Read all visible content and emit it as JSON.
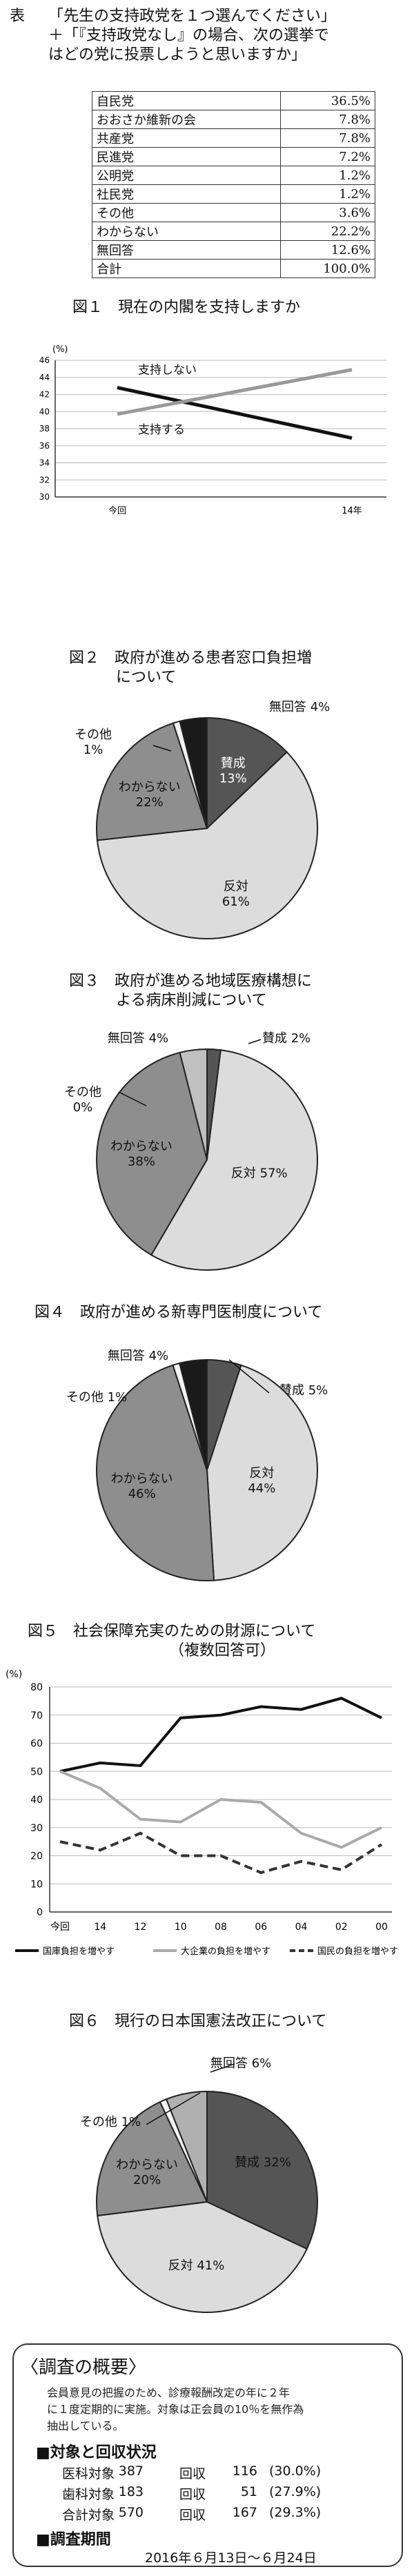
{
  "table_label": "表",
  "table_title": [
    "「先生の支持政党を１つ選んでください」",
    "＋「『支持政党なし』の場合、次の選挙で",
    "はどの党に投票しようと思いますか」"
  ],
  "chart_data": [
    {
      "type": "table",
      "rows": [
        {
          "name": "自民党",
          "value": "36.5%"
        },
        {
          "name": "おおさか維新の会",
          "value": "7.8%"
        },
        {
          "name": "共産党",
          "value": "7.8%"
        },
        {
          "name": "民進党",
          "value": "7.2%"
        },
        {
          "name": "公明党",
          "value": "1.2%"
        },
        {
          "name": "社民党",
          "value": "1.2%"
        },
        {
          "name": "その他",
          "value": "3.6%"
        },
        {
          "name": "わからない",
          "value": "22.2%"
        },
        {
          "name": "無回答",
          "value": "12.6%"
        },
        {
          "name": "合計",
          "value": "100.0%"
        }
      ]
    },
    {
      "type": "line",
      "num": "図１",
      "title": "現在の内閣を支持しますか",
      "unit": "(%)",
      "x": [
        "今回",
        "14年"
      ],
      "ylim": [
        30,
        46
      ],
      "yticks": [
        30,
        32,
        34,
        36,
        38,
        40,
        42,
        44,
        46
      ],
      "series": [
        {
          "name": "支持しない",
          "values": [
            42.8,
            36.9
          ],
          "color": "#111111"
        },
        {
          "name": "支持する",
          "values": [
            39.7,
            44.9
          ],
          "color": "#999999"
        }
      ]
    },
    {
      "type": "pie",
      "num": "図２",
      "title": [
        "政府が進める患者窓口負担増",
        "について"
      ],
      "slices": [
        {
          "label": "賛成",
          "value": 13,
          "color": "#555555"
        },
        {
          "label": "反対",
          "value": 61,
          "color": "#dcdcdc"
        },
        {
          "label": "わからない",
          "value": 22,
          "color": "#8e8e8e"
        },
        {
          "label": "その他",
          "value": 1,
          "color": "#f2f2f2"
        },
        {
          "label": "無回答",
          "value": 4,
          "color": "#1a1a1a"
        }
      ]
    },
    {
      "type": "pie",
      "num": "図３",
      "title": [
        "政府が進める地域医療構想に",
        "よる病床削減について"
      ],
      "slices": [
        {
          "label": "賛成",
          "value": 2,
          "color": "#555555"
        },
        {
          "label": "反対",
          "value": 57,
          "color": "#dcdcdc"
        },
        {
          "label": "わからない",
          "value": 38,
          "color": "#8e8e8e"
        },
        {
          "label": "その他",
          "value": 0,
          "color": "#f2f2f2"
        },
        {
          "label": "無回答",
          "value": 4,
          "color": "#c0c0c0"
        }
      ]
    },
    {
      "type": "pie",
      "num": "図４",
      "title": [
        "政府が進める新専門医制度について"
      ],
      "slices": [
        {
          "label": "賛成",
          "value": 5,
          "color": "#555555"
        },
        {
          "label": "反対",
          "value": 44,
          "color": "#dcdcdc"
        },
        {
          "label": "わからない",
          "value": 46,
          "color": "#8e8e8e"
        },
        {
          "label": "その他",
          "value": 1,
          "color": "#f2f2f2"
        },
        {
          "label": "無回答",
          "value": 4,
          "color": "#1a1a1a"
        }
      ]
    },
    {
      "type": "line",
      "num": "図５",
      "title": [
        "社会保障充実のための財源について",
        "（複数回答可）"
      ],
      "unit": "(%)",
      "x": [
        "今回",
        "14",
        "12",
        "10",
        "08",
        "06",
        "04",
        "02",
        "00"
      ],
      "ylim": [
        0,
        80
      ],
      "yticks": [
        0,
        10,
        20,
        30,
        40,
        50,
        60,
        70,
        80
      ],
      "series": [
        {
          "name": "国庫負担を増やす",
          "values": [
            50,
            53,
            52,
            69,
            70,
            73,
            72,
            76,
            69
          ],
          "style": "solid",
          "color": "#111111"
        },
        {
          "name": "大企業の負担を増やす",
          "values": [
            50,
            44,
            33,
            32,
            40,
            39,
            28,
            23,
            30
          ],
          "style": "solid",
          "color": "#aaaaaa"
        },
        {
          "name": "国民の負担を増やす",
          "values": [
            25,
            22,
            28,
            20,
            20,
            14,
            18,
            15,
            24
          ],
          "style": "dashed",
          "color": "#333333"
        }
      ]
    },
    {
      "type": "pie",
      "num": "図６",
      "title": [
        "現行の日本国憲法改正について"
      ],
      "slices": [
        {
          "label": "賛成",
          "value": 32,
          "color": "#555555"
        },
        {
          "label": "反対",
          "value": 41,
          "color": "#dcdcdc"
        },
        {
          "label": "わからない",
          "value": 20,
          "color": "#8e8e8e"
        },
        {
          "label": "その他",
          "value": 1,
          "color": "#f2f2f2"
        },
        {
          "label": "無回答",
          "value": 6,
          "color": "#b0b0b0"
        }
      ]
    }
  ],
  "summary": {
    "title": "〈調査の概要〉",
    "body": [
      "会員意見の把握のため、診療報酬改定の年に２年",
      "に１度定期的に実施。対象は正会員の10％を無作為",
      "抽出している。"
    ],
    "h_targets": "■対象と回収状況",
    "rows": [
      {
        "label": "医科対象",
        "target": "387",
        "rec_label": "回収",
        "rec": "116",
        "pct": "(30.0%)"
      },
      {
        "label": "歯科対象",
        "target": "183",
        "rec_label": "回収",
        "rec": "51",
        "pct": "(27.9%)"
      },
      {
        "label": "合計対象",
        "target": "570",
        "rec_label": "回収",
        "rec": "167",
        "pct": "(29.3%)"
      }
    ],
    "h_period": "■調査期間",
    "period": "2016年６月13日～６月24日"
  }
}
